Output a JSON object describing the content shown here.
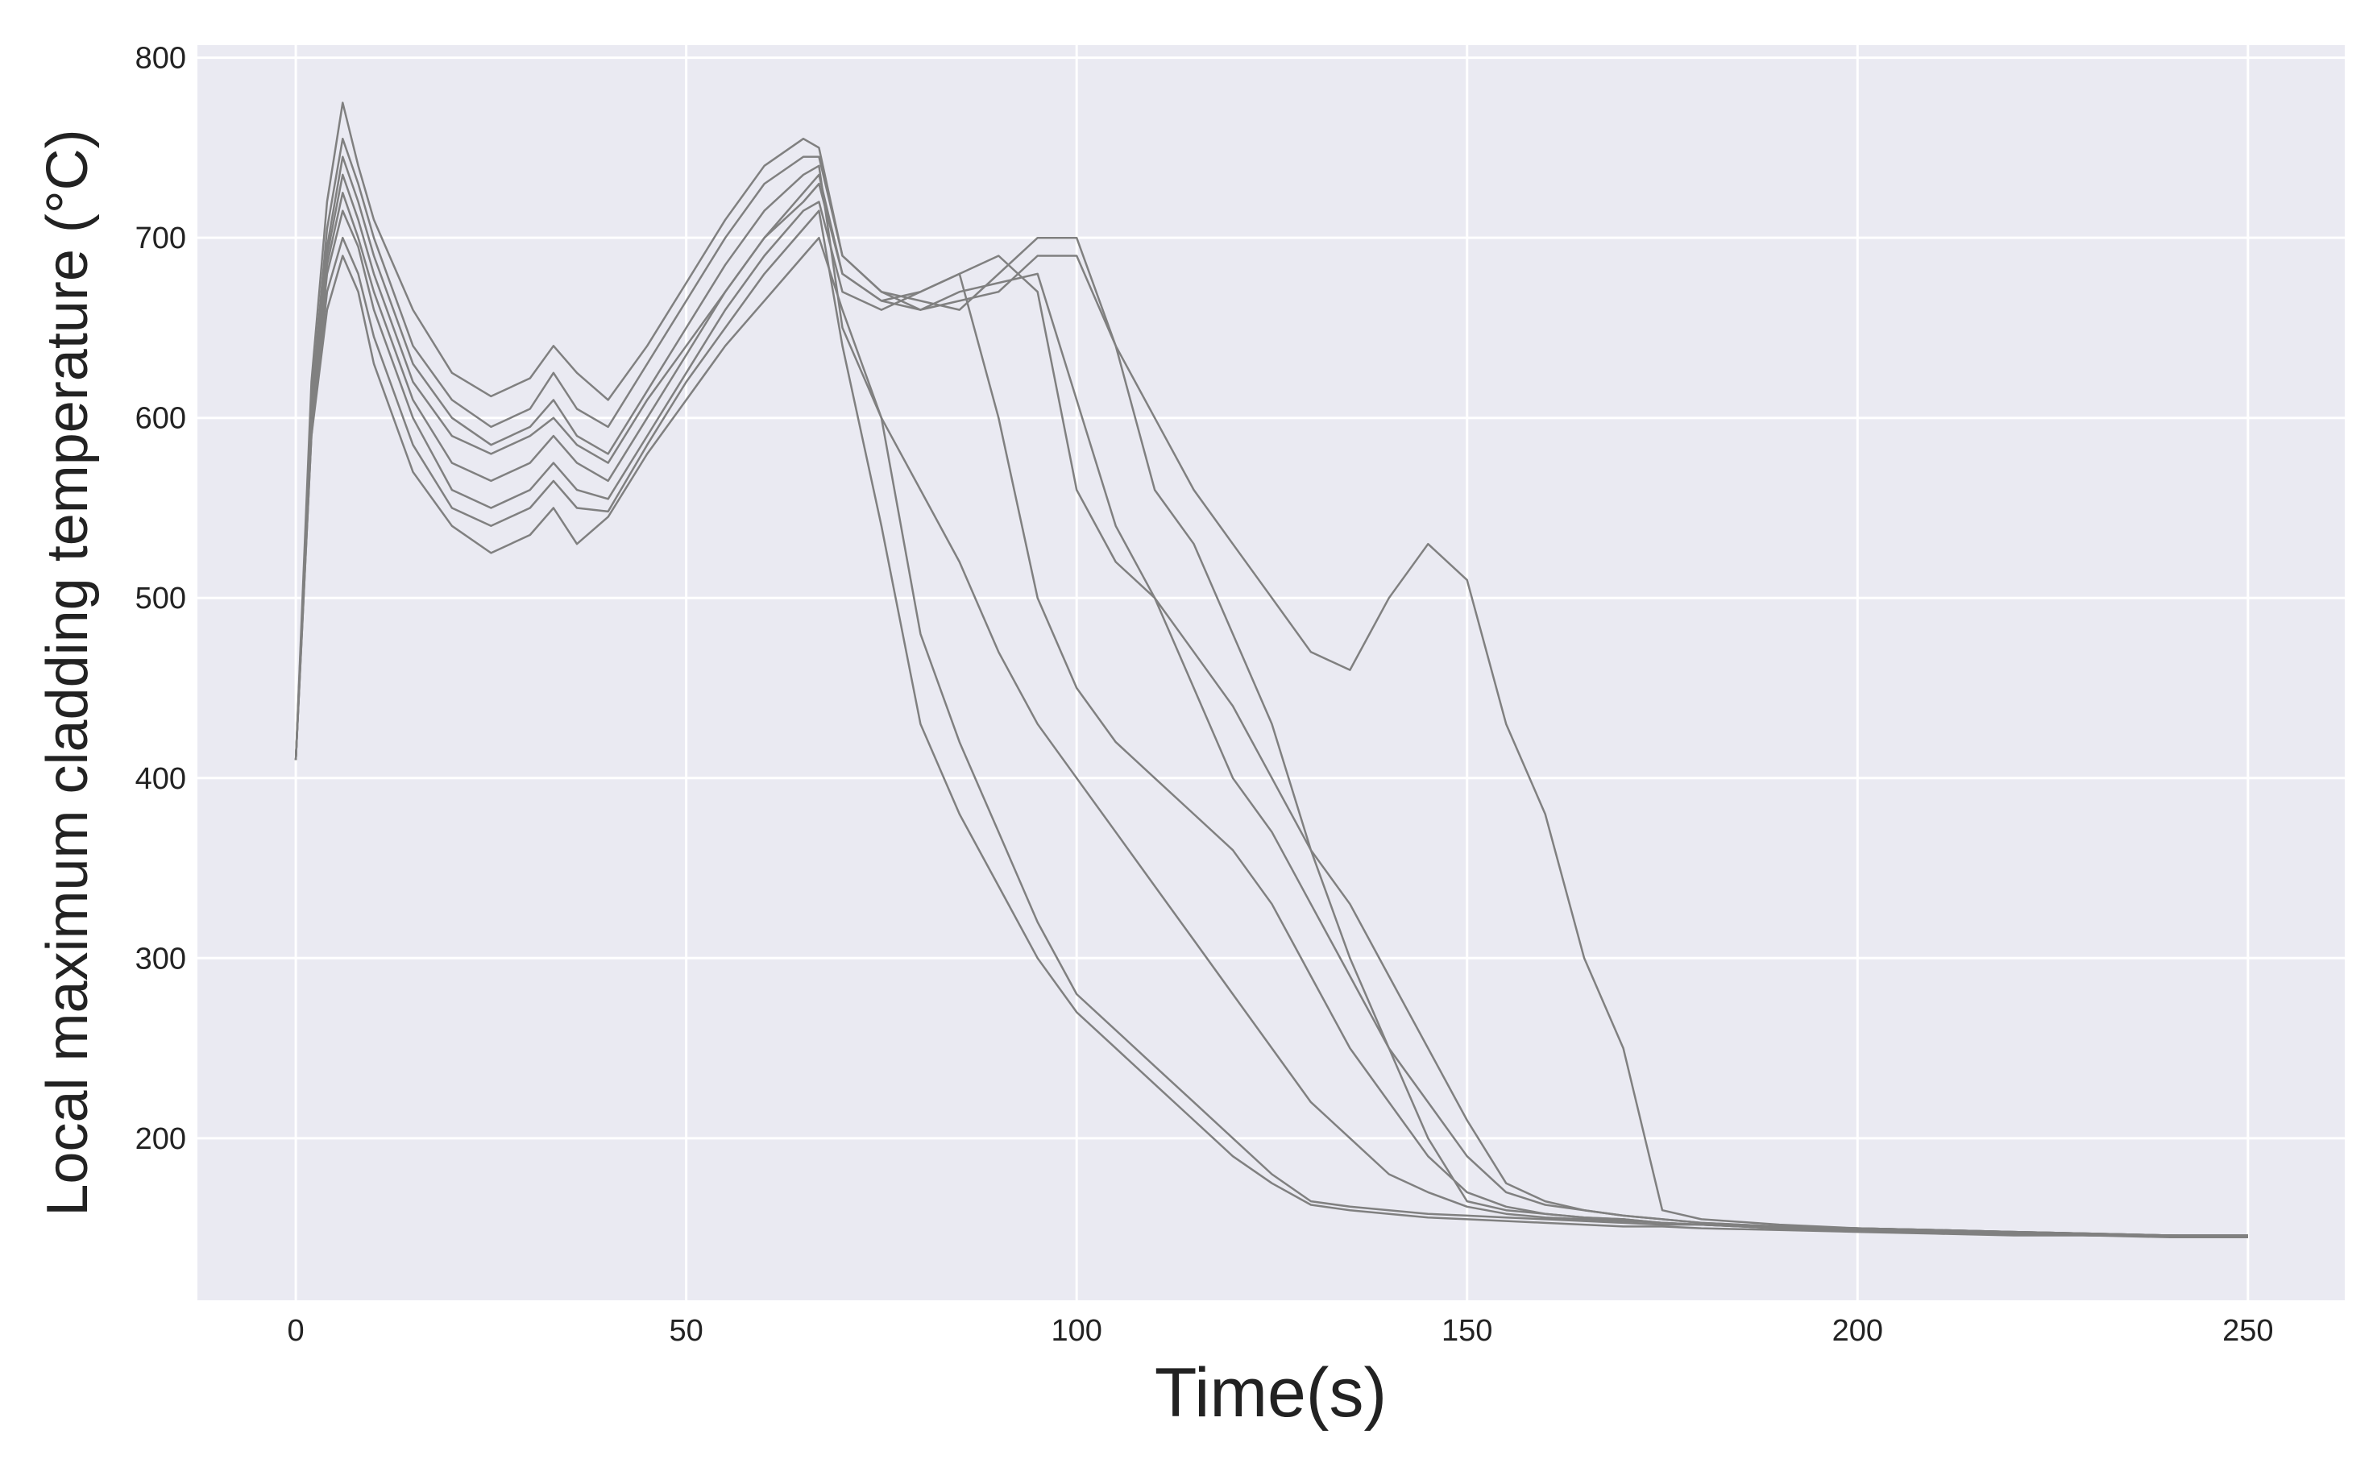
{
  "chart_data": {
    "type": "line",
    "xlabel": "Time(s)",
    "ylabel": "Local maximum cladding temperature (°C)",
    "x": [
      0,
      2,
      4,
      6,
      8,
      10,
      15,
      20,
      25,
      30,
      33,
      36,
      40,
      45,
      50,
      55,
      60,
      65,
      67,
      70,
      75,
      80,
      85,
      90,
      95,
      100,
      105,
      110,
      115,
      120,
      125,
      130,
      135,
      140,
      145,
      150,
      155,
      160,
      165,
      170,
      175,
      180,
      190,
      200,
      210,
      220,
      230,
      240,
      250
    ],
    "series": [
      {
        "color": "#808080",
        "values": [
          410,
          590,
          660,
          690,
          670,
          630,
          570,
          540,
          525,
          535,
          550,
          530,
          545,
          580,
          610,
          640,
          665,
          690,
          700,
          660,
          600,
          480,
          420,
          370,
          320,
          280,
          260,
          240,
          220,
          200,
          180,
          165,
          162,
          160,
          158,
          157,
          156,
          155,
          154,
          153,
          152,
          152,
          150,
          149,
          148,
          147,
          146,
          146,
          145
        ]
      },
      {
        "color": "#808080",
        "values": [
          410,
          620,
          720,
          775,
          740,
          710,
          660,
          625,
          612,
          622,
          640,
          625,
          610,
          640,
          675,
          710,
          740,
          755,
          750,
          690,
          670,
          665,
          660,
          680,
          700,
          700,
          640,
          560,
          530,
          480,
          430,
          360,
          300,
          250,
          200,
          165,
          160,
          158,
          156,
          155,
          153,
          152,
          151,
          150,
          149,
          148,
          147,
          146,
          146
        ]
      },
      {
        "color": "#808080",
        "values": [
          410,
          600,
          690,
          735,
          710,
          680,
          620,
          590,
          580,
          590,
          600,
          585,
          575,
          610,
          640,
          670,
          700,
          720,
          730,
          680,
          665,
          660,
          665,
          670,
          690,
          690,
          640,
          600,
          560,
          530,
          500,
          470,
          460,
          500,
          530,
          510,
          430,
          380,
          300,
          250,
          160,
          155,
          152,
          150,
          149,
          148,
          147,
          146,
          146
        ]
      },
      {
        "color": "#808080",
        "values": [
          410,
          605,
          695,
          745,
          720,
          690,
          630,
          600,
          585,
          595,
          610,
          590,
          580,
          615,
          650,
          685,
          715,
          735,
          740,
          650,
          600,
          560,
          520,
          470,
          430,
          400,
          370,
          340,
          310,
          280,
          250,
          220,
          200,
          180,
          170,
          162,
          158,
          156,
          155,
          154,
          153,
          152,
          150,
          149,
          148,
          147,
          146,
          146,
          145
        ]
      },
      {
        "color": "#808080",
        "values": [
          410,
          595,
          680,
          715,
          695,
          660,
          600,
          560,
          550,
          560,
          575,
          560,
          555,
          590,
          625,
          660,
          690,
          715,
          720,
          670,
          660,
          670,
          680,
          600,
          500,
          450,
          420,
          400,
          380,
          360,
          330,
          290,
          250,
          220,
          190,
          170,
          162,
          158,
          156,
          155,
          153,
          152,
          150,
          149,
          148,
          147,
          146,
          146,
          145
        ]
      },
      {
        "color": "#808080",
        "values": [
          410,
          600,
          685,
          725,
          700,
          670,
          610,
          575,
          565,
          575,
          590,
          575,
          565,
          600,
          635,
          670,
          700,
          725,
          735,
          680,
          665,
          670,
          680,
          690,
          670,
          560,
          520,
          500,
          470,
          440,
          400,
          360,
          330,
          290,
          250,
          210,
          175,
          165,
          160,
          157,
          155,
          153,
          151,
          150,
          149,
          148,
          147,
          146,
          146
        ]
      },
      {
        "color": "#808080",
        "values": [
          410,
          590,
          670,
          700,
          680,
          645,
          585,
          550,
          540,
          550,
          565,
          550,
          548,
          585,
          620,
          650,
          680,
          705,
          715,
          640,
          540,
          430,
          380,
          340,
          300,
          270,
          250,
          230,
          210,
          190,
          175,
          163,
          160,
          158,
          156,
          155,
          154,
          153,
          152,
          151,
          151,
          150,
          149,
          148,
          147,
          146,
          146,
          145,
          145
        ]
      },
      {
        "color": "#808080",
        "values": [
          410,
          610,
          705,
          755,
          730,
          700,
          640,
          610,
          595,
          605,
          625,
          605,
          595,
          630,
          665,
          700,
          730,
          745,
          745,
          690,
          670,
          660,
          670,
          675,
          680,
          610,
          540,
          500,
          450,
          400,
          370,
          330,
          290,
          250,
          220,
          190,
          170,
          163,
          160,
          157,
          155,
          153,
          151,
          150,
          149,
          148,
          147,
          146,
          146
        ]
      }
    ],
    "xlim": [
      -12.6,
      262.4
    ],
    "xticks": [
      0,
      50,
      100,
      150,
      200,
      250
    ],
    "ylim": [
      110,
      807
    ],
    "yticks": [
      200,
      300,
      400,
      500,
      600,
      700,
      800
    ],
    "grid": true
  }
}
